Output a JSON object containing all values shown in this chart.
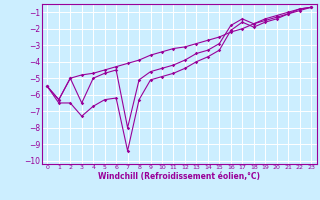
{
  "xlabel": "Windchill (Refroidissement éolien,°C)",
  "ylabel": "",
  "bg_color": "#cceeff",
  "grid_color": "#ffffff",
  "line_color": "#990099",
  "xlim": [
    -0.5,
    23.5
  ],
  "ylim": [
    -10.2,
    -0.5
  ],
  "yticks": [
    -10,
    -9,
    -8,
    -7,
    -6,
    -5,
    -4,
    -3,
    -2,
    -1
  ],
  "xticks": [
    0,
    1,
    2,
    3,
    4,
    5,
    6,
    7,
    8,
    9,
    10,
    11,
    12,
    13,
    14,
    15,
    16,
    17,
    18,
    19,
    20,
    21,
    22,
    23
  ],
  "line1_x": [
    0,
    1,
    2,
    3,
    4,
    5,
    6,
    7,
    8,
    9,
    10,
    11,
    12,
    13,
    14,
    15,
    16,
    17,
    18,
    19,
    20,
    21,
    22,
    23
  ],
  "line1_y": [
    -5.5,
    -6.5,
    -6.5,
    -7.3,
    -6.7,
    -6.3,
    -6.2,
    -9.4,
    -6.3,
    -5.1,
    -4.9,
    -4.7,
    -4.4,
    -4.0,
    -3.7,
    -3.3,
    -2.1,
    -1.6,
    -1.9,
    -1.6,
    -1.4,
    -1.1,
    -0.8,
    -0.7
  ],
  "line2_x": [
    0,
    1,
    2,
    3,
    4,
    5,
    6,
    7,
    8,
    9,
    10,
    11,
    12,
    13,
    14,
    15,
    16,
    17,
    18,
    19,
    20,
    21,
    22,
    23
  ],
  "line2_y": [
    -5.5,
    -6.3,
    -5.0,
    -6.5,
    -5.0,
    -4.7,
    -4.5,
    -8.0,
    -5.1,
    -4.6,
    -4.4,
    -4.2,
    -3.9,
    -3.5,
    -3.3,
    -2.9,
    -1.8,
    -1.4,
    -1.7,
    -1.4,
    -1.2,
    -1.0,
    -0.8,
    -0.7
  ],
  "line3_x": [
    0,
    1,
    2,
    3,
    4,
    5,
    6,
    7,
    8,
    9,
    10,
    11,
    12,
    13,
    14,
    15,
    16,
    17,
    18,
    19,
    20,
    21,
    22,
    23
  ],
  "line3_y": [
    -5.5,
    -6.3,
    -5.0,
    -4.8,
    -4.7,
    -4.5,
    -4.3,
    -4.1,
    -3.9,
    -3.6,
    -3.4,
    -3.2,
    -3.1,
    -2.9,
    -2.7,
    -2.5,
    -2.2,
    -2.0,
    -1.7,
    -1.5,
    -1.3,
    -1.1,
    -0.9,
    -0.7
  ]
}
